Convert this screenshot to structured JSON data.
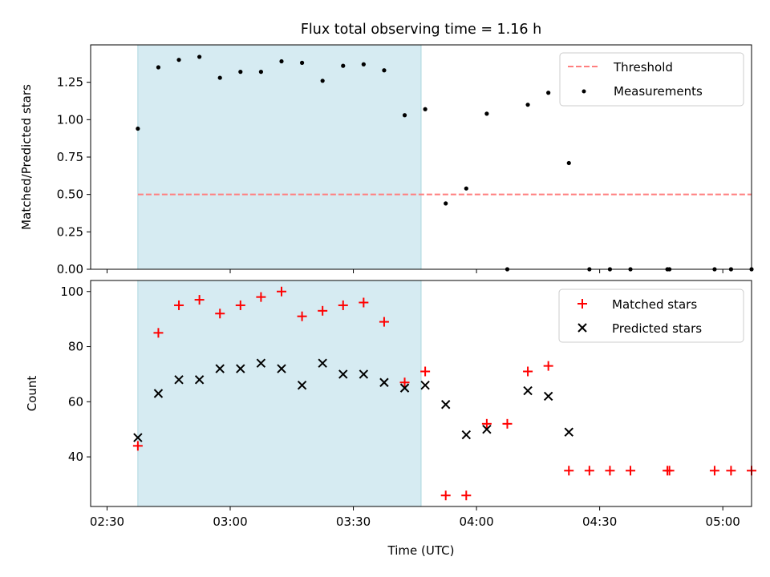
{
  "figure": {
    "title": "Flux total observing time = 1.16 h",
    "xlabel": "Time (UTC)"
  },
  "chart_data": [
    {
      "type": "scatter",
      "title": "Flux total observing time = 1.16 h",
      "xlabel": "",
      "ylabel": "Matched/Predicted stars",
      "xlim": [
        "02:26",
        "05:07"
      ],
      "ylim": [
        0,
        1.5
      ],
      "yticks": [
        "0.00",
        "0.25",
        "0.50",
        "0.75",
        "1.00",
        "1.25"
      ],
      "shaded_interval": {
        "start": "02:37.5",
        "end": "03:46.5",
        "color": "#add8e6"
      },
      "legend": {
        "position": "top-right",
        "entries": [
          "Threshold",
          "Measurements"
        ]
      },
      "series": [
        {
          "name": "Threshold",
          "kind": "dashed-line",
          "color": "#ff7f7f",
          "x": [
            "02:37.5",
            "05:07"
          ],
          "y": [
            0.5,
            0.5
          ]
        },
        {
          "name": "Measurements",
          "kind": "dot",
          "color": "#000000",
          "x": [
            "02:37.5",
            "02:42.5",
            "02:47.5",
            "02:52.5",
            "02:57.5",
            "03:02.5",
            "03:07.5",
            "03:12.5",
            "03:17.5",
            "03:22.5",
            "03:27.5",
            "03:32.5",
            "03:37.5",
            "03:42.5",
            "03:47.5",
            "03:52.5",
            "03:57.5",
            "04:02.5",
            "04:07.5",
            "04:12.5",
            "04:17.5",
            "04:22.5",
            "04:27.5",
            "04:32.5",
            "04:37.5",
            "04:46.5",
            "04:47",
            "04:58",
            "05:02",
            "05:07"
          ],
          "y": [
            0.94,
            1.35,
            1.4,
            1.42,
            1.28,
            1.32,
            1.32,
            1.39,
            1.38,
            1.26,
            1.36,
            1.37,
            1.33,
            1.03,
            1.07,
            0.44,
            0.54,
            1.04,
            0.0,
            1.1,
            1.18,
            0.71,
            0.0,
            0.0,
            0.0,
            0.0,
            0.0,
            0.0,
            0.0,
            0.0
          ]
        }
      ]
    },
    {
      "type": "scatter",
      "xlabel": "Time (UTC)",
      "ylabel": "Count",
      "xlim": [
        "02:26",
        "05:07"
      ],
      "ylim": [
        22,
        104
      ],
      "xticks": [
        "02:30",
        "03:00",
        "03:30",
        "04:00",
        "04:30",
        "05:00"
      ],
      "yticks": [
        40,
        60,
        80,
        100
      ],
      "shaded_interval": {
        "start": "02:37.5",
        "end": "03:46.5",
        "color": "#add8e6"
      },
      "legend": {
        "position": "top-right",
        "entries": [
          "Matched stars",
          "Predicted stars"
        ]
      },
      "series": [
        {
          "name": "Matched stars",
          "marker": "plus",
          "color": "#ff0000",
          "x": [
            "02:37.5",
            "02:42.5",
            "02:47.5",
            "02:52.5",
            "02:57.5",
            "03:02.5",
            "03:07.5",
            "03:12.5",
            "03:17.5",
            "03:22.5",
            "03:27.5",
            "03:32.5",
            "03:37.5",
            "03:42.5",
            "03:47.5",
            "03:52.5",
            "03:57.5",
            "04:02.5",
            "04:07.5",
            "04:12.5",
            "04:17.5",
            "04:22.5",
            "04:27.5",
            "04:32.5",
            "04:37.5",
            "04:46.5",
            "04:47",
            "04:58",
            "05:02",
            "05:07"
          ],
          "y": [
            44,
            85,
            95,
            97,
            92,
            95,
            98,
            100,
            91,
            93,
            95,
            96,
            89,
            67,
            71,
            26,
            26,
            52,
            52,
            71,
            73,
            35,
            35,
            35,
            35,
            35,
            35,
            35,
            35,
            35
          ]
        },
        {
          "name": "Predicted stars",
          "marker": "x",
          "color": "#000000",
          "x": [
            "02:37.5",
            "02:42.5",
            "02:47.5",
            "02:52.5",
            "02:57.5",
            "03:02.5",
            "03:07.5",
            "03:12.5",
            "03:17.5",
            "03:22.5",
            "03:27.5",
            "03:32.5",
            "03:37.5",
            "03:42.5",
            "03:47.5",
            "03:52.5",
            "03:57.5",
            "04:02.5",
            "04:12.5",
            "04:17.5",
            "04:22.5"
          ],
          "y": [
            47,
            63,
            68,
            68,
            72,
            72,
            74,
            72,
            66,
            74,
            70,
            70,
            67,
            65,
            66,
            59,
            48,
            50,
            64,
            62,
            49
          ]
        }
      ]
    }
  ]
}
